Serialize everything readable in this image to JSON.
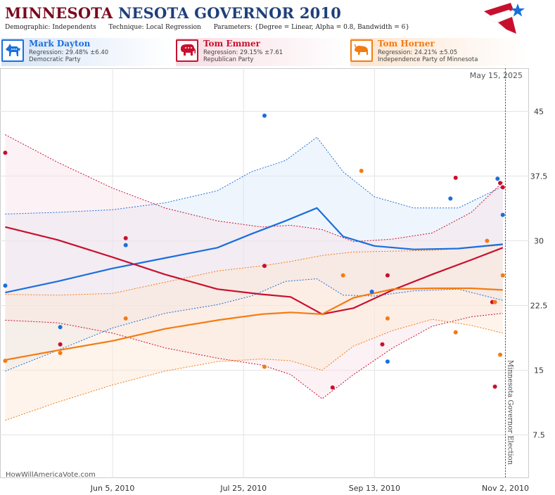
{
  "header": {
    "title_part1": "MINNESOTA",
    "title_part2": "NESOTA GOVERNOR 2010",
    "demographic_label": "Demographic:",
    "demographic_value": "Independents",
    "technique_label": "Technique:",
    "technique_value": "Local Regression",
    "parameters_label": "Parameters:",
    "parameters_value": "{Degree = Linear, Alpha = 0.8, Bandwidth = 6}"
  },
  "candidates": [
    {
      "name": "Mark Dayton",
      "regression": "Regression: 29.48% ±6.40",
      "party": "Democratic Party",
      "color": "#1a6fdc",
      "icon": "donkey-icon"
    },
    {
      "name": "Tom Emmer",
      "regression": "Regression: 29.15% ±7.61",
      "party": "Republican Party",
      "color": "#c8102e",
      "icon": "elephant-icon"
    },
    {
      "name": "Tom Horner",
      "regression": "Regression: 24.21% ±5.05",
      "party": "Independence Party  of Minnesota",
      "color": "#f47b10",
      "icon": "bison-icon"
    }
  ],
  "chart_data": {
    "type": "scatter",
    "date_stamp": "May 15, 2025",
    "watermark": "HowWillAmericaVote.com",
    "election_label": "Minnesota Governor Election",
    "x_tick_labels": [
      "Jun 5, 2010",
      "Jul 25, 2010",
      "Sep 13, 2010",
      "Nov 2, 2010"
    ],
    "x_ticks": [
      "2010-06-05",
      "2010-07-25",
      "2010-09-13",
      "2010-11-02"
    ],
    "xlim": [
      "2010-04-23",
      "2010-11-11"
    ],
    "election_date": "2010-11-02",
    "ylim": [
      2.5,
      50
    ],
    "y_ticks": [
      7.5,
      15,
      22.5,
      30,
      37.5,
      45
    ],
    "grid": true,
    "series": [
      {
        "name": "Mark Dayton",
        "color": "#1a6fdc",
        "band_fill": "#dce8f8",
        "points": [
          [
            "2010-04-25",
            24.8
          ],
          [
            "2010-05-16",
            20
          ],
          [
            "2010-06-10",
            29.5
          ],
          [
            "2010-08-02",
            44.5
          ],
          [
            "2010-09-12",
            24.1
          ],
          [
            "2010-09-18",
            16
          ],
          [
            "2010-10-12",
            34.9
          ],
          [
            "2010-10-30",
            37.2
          ],
          [
            "2010-11-01",
            33
          ]
        ],
        "fit": [
          [
            "2010-04-25",
            24
          ],
          [
            "2010-05-15",
            25.3
          ],
          [
            "2010-06-05",
            26.8
          ],
          [
            "2010-06-25",
            28
          ],
          [
            "2010-07-15",
            29.2
          ],
          [
            "2010-07-28",
            30.8
          ],
          [
            "2010-08-10",
            32.3
          ],
          [
            "2010-08-22",
            33.8
          ],
          [
            "2010-09-01",
            30.5
          ],
          [
            "2010-09-13",
            29.4
          ],
          [
            "2010-09-28",
            29
          ],
          [
            "2010-10-15",
            29.1
          ],
          [
            "2010-11-01",
            29.6
          ]
        ],
        "upper": [
          [
            "2010-04-25",
            33.1
          ],
          [
            "2010-05-15",
            33.3
          ],
          [
            "2010-06-05",
            33.6
          ],
          [
            "2010-06-25",
            34.4
          ],
          [
            "2010-07-15",
            35.8
          ],
          [
            "2010-07-28",
            38
          ],
          [
            "2010-08-10",
            39.3
          ],
          [
            "2010-08-22",
            42
          ],
          [
            "2010-09-01",
            38
          ],
          [
            "2010-09-13",
            35.1
          ],
          [
            "2010-09-28",
            33.8
          ],
          [
            "2010-10-15",
            33.8
          ],
          [
            "2010-11-01",
            36.3
          ]
        ],
        "lower": [
          [
            "2010-04-25",
            14.9
          ],
          [
            "2010-05-15",
            17.3
          ],
          [
            "2010-06-05",
            19.9
          ],
          [
            "2010-06-25",
            21.6
          ],
          [
            "2010-07-15",
            22.6
          ],
          [
            "2010-07-28",
            23.6
          ],
          [
            "2010-08-10",
            25.3
          ],
          [
            "2010-08-22",
            25.6
          ],
          [
            "2010-09-01",
            23.7
          ],
          [
            "2010-09-13",
            23.6
          ],
          [
            "2010-09-28",
            24.2
          ],
          [
            "2010-10-15",
            24.4
          ],
          [
            "2010-11-01",
            23.1
          ]
        ]
      },
      {
        "name": "Tom Emmer",
        "color": "#c8102e",
        "band_fill": "#f9e2e8",
        "points": [
          [
            "2010-04-25",
            40.2
          ],
          [
            "2010-05-16",
            18
          ],
          [
            "2010-06-10",
            30.3
          ],
          [
            "2010-08-02",
            27.1
          ],
          [
            "2010-08-28",
            13
          ],
          [
            "2010-09-16",
            18
          ],
          [
            "2010-09-18",
            26
          ],
          [
            "2010-10-14",
            37.3
          ],
          [
            "2010-10-28",
            22.9
          ],
          [
            "2010-10-29",
            13.1
          ],
          [
            "2010-10-31",
            36.7
          ],
          [
            "2010-11-01",
            36.2
          ]
        ],
        "fit": [
          [
            "2010-04-25",
            31.6
          ],
          [
            "2010-05-15",
            30.1
          ],
          [
            "2010-06-05",
            28.1
          ],
          [
            "2010-06-25",
            26.1
          ],
          [
            "2010-07-15",
            24.4
          ],
          [
            "2010-08-01",
            23.8
          ],
          [
            "2010-08-12",
            23.5
          ],
          [
            "2010-08-24",
            21.5
          ],
          [
            "2010-09-05",
            22.2
          ],
          [
            "2010-09-20",
            24.3
          ],
          [
            "2010-10-05",
            26.1
          ],
          [
            "2010-10-20",
            27.8
          ],
          [
            "2010-11-01",
            29.2
          ]
        ],
        "upper": [
          [
            "2010-04-25",
            42.3
          ],
          [
            "2010-05-15",
            39.1
          ],
          [
            "2010-06-05",
            36.1
          ],
          [
            "2010-06-25",
            33.8
          ],
          [
            "2010-07-15",
            32.3
          ],
          [
            "2010-08-01",
            31.6
          ],
          [
            "2010-08-12",
            31.8
          ],
          [
            "2010-08-24",
            31.3
          ],
          [
            "2010-09-05",
            29.9
          ],
          [
            "2010-09-20",
            30.2
          ],
          [
            "2010-10-05",
            30.9
          ],
          [
            "2010-10-20",
            33.3
          ],
          [
            "2010-11-01",
            36.8
          ]
        ],
        "lower": [
          [
            "2010-04-25",
            20.8
          ],
          [
            "2010-05-15",
            20.5
          ],
          [
            "2010-06-05",
            19.3
          ],
          [
            "2010-06-25",
            17.6
          ],
          [
            "2010-07-15",
            16.4
          ],
          [
            "2010-08-01",
            15.6
          ],
          [
            "2010-08-12",
            14.5
          ],
          [
            "2010-08-24",
            11.7
          ],
          [
            "2010-09-05",
            14.5
          ],
          [
            "2010-09-20",
            17.6
          ],
          [
            "2010-10-05",
            20.1
          ],
          [
            "2010-10-20",
            21.2
          ],
          [
            "2010-11-01",
            21.6
          ]
        ]
      },
      {
        "name": "Tom Horner",
        "color": "#f47b10",
        "band_fill": "#fde6d3",
        "points": [
          [
            "2010-04-25",
            16.1
          ],
          [
            "2010-05-16",
            17
          ],
          [
            "2010-06-10",
            21
          ],
          [
            "2010-08-02",
            15.4
          ],
          [
            "2010-09-01",
            26
          ],
          [
            "2010-09-08",
            38.1
          ],
          [
            "2010-09-18",
            21
          ],
          [
            "2010-10-14",
            19.4
          ],
          [
            "2010-10-26",
            30
          ],
          [
            "2010-10-29",
            22.9
          ],
          [
            "2010-10-31",
            16.8
          ],
          [
            "2010-11-01",
            26
          ]
        ],
        "fit": [
          [
            "2010-04-25",
            16.2
          ],
          [
            "2010-05-15",
            17.3
          ],
          [
            "2010-06-05",
            18.4
          ],
          [
            "2010-06-25",
            19.8
          ],
          [
            "2010-07-15",
            20.8
          ],
          [
            "2010-08-01",
            21.5
          ],
          [
            "2010-08-12",
            21.7
          ],
          [
            "2010-08-24",
            21.5
          ],
          [
            "2010-09-05",
            23.4
          ],
          [
            "2010-09-20",
            24.4
          ],
          [
            "2010-10-05",
            24.5
          ],
          [
            "2010-10-20",
            24.5
          ],
          [
            "2010-11-01",
            24.3
          ]
        ],
        "upper": [
          [
            "2010-04-25",
            23.8
          ],
          [
            "2010-05-15",
            23.7
          ],
          [
            "2010-06-05",
            23.9
          ],
          [
            "2010-06-25",
            25.2
          ],
          [
            "2010-07-15",
            26.5
          ],
          [
            "2010-08-01",
            27.1
          ],
          [
            "2010-08-12",
            27.6
          ],
          [
            "2010-08-24",
            28.3
          ],
          [
            "2010-09-05",
            28.7
          ],
          [
            "2010-09-20",
            28.8
          ],
          [
            "2010-10-05",
            28.9
          ],
          [
            "2010-10-20",
            29.2
          ],
          [
            "2010-11-01",
            29.5
          ]
        ],
        "lower": [
          [
            "2010-04-25",
            9.2
          ],
          [
            "2010-05-15",
            11.3
          ],
          [
            "2010-06-05",
            13.3
          ],
          [
            "2010-06-25",
            14.9
          ],
          [
            "2010-07-15",
            16
          ],
          [
            "2010-08-01",
            16.3
          ],
          [
            "2010-08-12",
            16.1
          ],
          [
            "2010-08-24",
            15
          ],
          [
            "2010-09-05",
            17.8
          ],
          [
            "2010-09-20",
            19.6
          ],
          [
            "2010-10-05",
            20.9
          ],
          [
            "2010-10-20",
            20.2
          ],
          [
            "2010-11-01",
            19.3
          ]
        ]
      }
    ]
  }
}
